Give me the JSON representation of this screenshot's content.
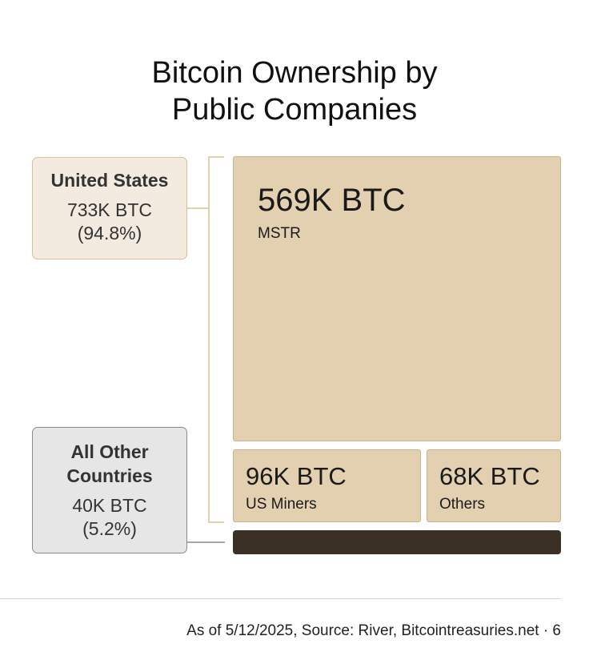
{
  "title_lines": [
    "Bitcoin Ownership by",
    "Public Companies"
  ],
  "chart_data": {
    "type": "treemap",
    "unit": "BTC",
    "groups": [
      {
        "name_lines": [
          "United States"
        ],
        "value": 733000,
        "value_label": "733K BTC",
        "share_label": "(94.8%)",
        "share": 94.8,
        "children": [
          {
            "name": "MSTR",
            "value": 569000,
            "value_label": "569K BTC"
          },
          {
            "name": "US Miners",
            "value": 96000,
            "value_label": "96K BTC"
          },
          {
            "name": "Others",
            "value": 68000,
            "value_label": "68K BTC"
          }
        ]
      },
      {
        "name_lines": [
          "All Other",
          "Countries"
        ],
        "value": 40000,
        "value_label": "40K BTC",
        "share_label": "(5.2%)",
        "share": 5.2,
        "children": []
      }
    ],
    "colors": {
      "us_block": "#e2d0b0",
      "us_border": "#cbb28a",
      "other_block": "#3a3024",
      "us_label_bg": "#f3ebe0",
      "other_label_bg": "#e6e6e6"
    }
  },
  "footer": "As of 5/12/2025, Source: River, Bitcointreasuries.net · 6"
}
